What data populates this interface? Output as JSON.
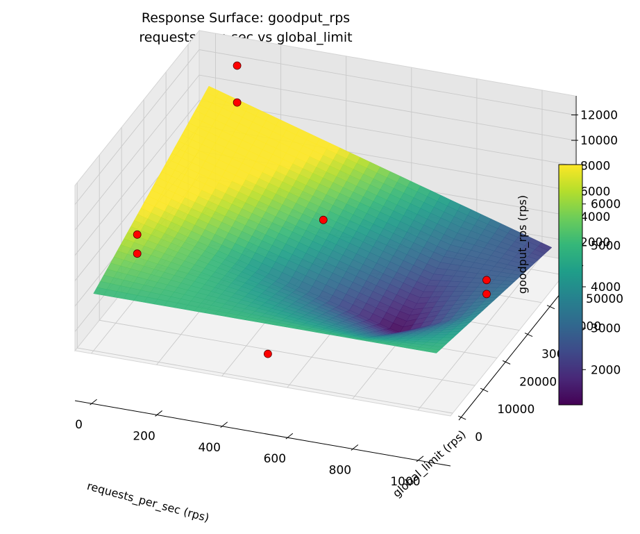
{
  "chart_data": {
    "type": "surface3d",
    "title": "Response Surface: goodput_rps",
    "subtitle": "requests_per_sec vs global_limit",
    "xlabel": "requests_per_sec (rps)",
    "ylabel": "global_limit (rps)",
    "zlabel": "goodput_rps (rps)",
    "xlim": [
      -50,
      1100
    ],
    "ylim": [
      -1000,
      55000
    ],
    "zlim": [
      500,
      13500
    ],
    "x_ticks": [
      "0",
      "200",
      "400",
      "600",
      "800",
      "1000"
    ],
    "y_ticks": [
      "0",
      "10000",
      "20000",
      "30000",
      "40000",
      "50000"
    ],
    "z_ticks": [
      "2000",
      "4000",
      "6000",
      "8000",
      "10000",
      "12000"
    ],
    "colormap": "viridis",
    "colorbar": {
      "min": 1150,
      "max": 6950,
      "ticks": [
        "2000",
        "3000",
        "4000",
        "5000",
        "6000"
      ]
    },
    "grid": true,
    "surface": {
      "x_range": [
        0,
        1050
      ],
      "y_range": [
        0,
        52000
      ],
      "corners": {
        "x0_y0": 5000,
        "x1050_y0": 5000,
        "x0_y52000": 10000,
        "x1050_y52000": 2000
      },
      "minimum": {
        "x": 800,
        "y": 20000,
        "z": 1150
      }
    },
    "points": [
      {
        "x": 100,
        "y": 50000,
        "z": 12500
      },
      {
        "x": 100,
        "y": 50000,
        "z": 9600
      },
      {
        "x": 100,
        "y": 5000,
        "z": 9000
      },
      {
        "x": 100,
        "y": 5000,
        "z": 7500
      },
      {
        "x": 500,
        "y": 30000,
        "z": 6500
      },
      {
        "x": 1000,
        "y": 30000,
        "z": 4000
      },
      {
        "x": 1000,
        "y": 30000,
        "z": 2900
      },
      {
        "x": 500,
        "y": 5000,
        "z": 1400
      }
    ]
  }
}
